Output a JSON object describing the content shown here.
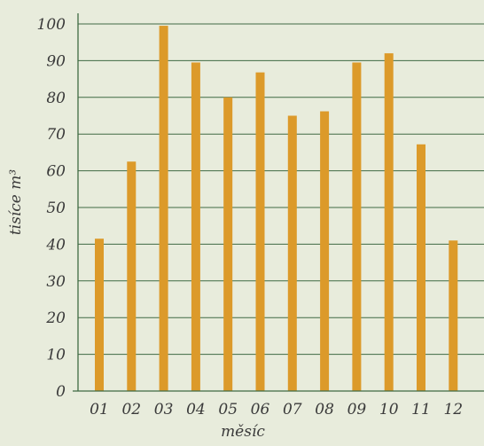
{
  "chart_data": {
    "type": "bar",
    "categories": [
      "01",
      "02",
      "03",
      "04",
      "05",
      "06",
      "07",
      "08",
      "09",
      "10",
      "11",
      "12"
    ],
    "values": [
      41.5,
      62.5,
      99.5,
      89.5,
      80,
      86.8,
      75,
      76.2,
      89.5,
      92,
      67.2,
      41
    ],
    "title": "",
    "xlabel": "měsíc",
    "ylabel": "tisíce m³",
    "ylim": [
      0,
      100
    ],
    "yticks": [
      0,
      10,
      20,
      30,
      40,
      50,
      60,
      70,
      80,
      90,
      100
    ],
    "grid": true,
    "colors": {
      "bar": "#dc9a2a",
      "grid": "#3f6a43",
      "axis": "#3f6a43",
      "background": "#e8ecdc"
    }
  }
}
